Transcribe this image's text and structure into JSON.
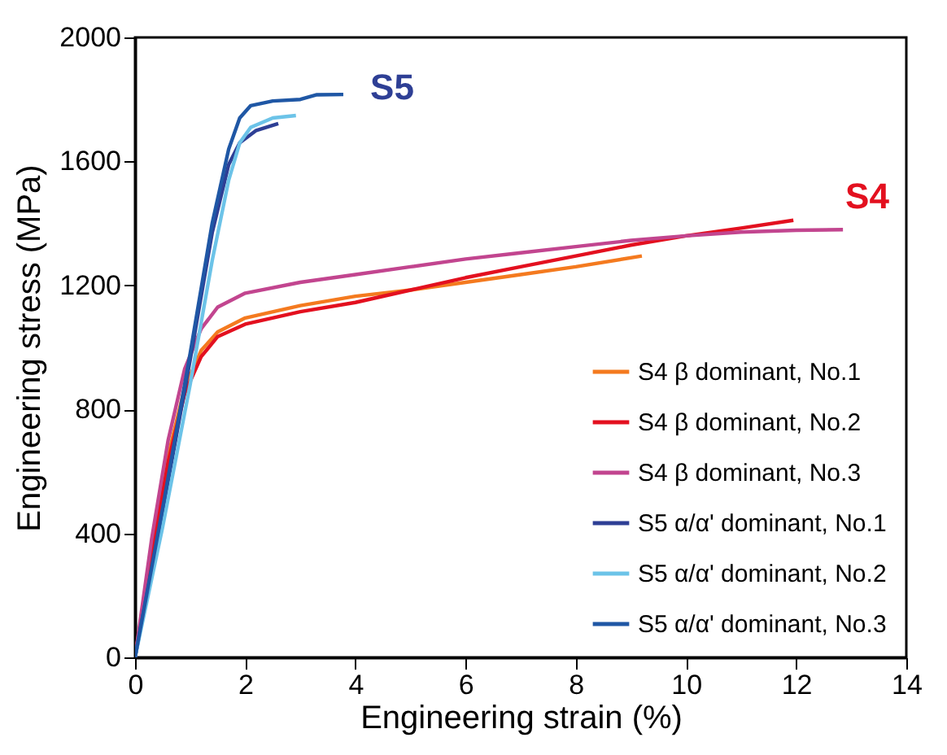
{
  "chart_data": {
    "type": "line",
    "xlabel": "Engineering strain (%)",
    "ylabel": "Engineering stress (MPa)",
    "xlim": [
      0,
      14
    ],
    "xticks": [
      0,
      2,
      4,
      6,
      8,
      10,
      12,
      14
    ],
    "ylim": [
      0,
      2000
    ],
    "yticks": [
      0,
      400,
      800,
      1200,
      1600,
      2000
    ],
    "grid": false,
    "legend": "bottom right",
    "marker": "none",
    "line_style": "solid",
    "annotations": [
      "S5",
      "S4"
    ],
    "series": [
      {
        "name": "S4  β dominant, No.1",
        "color": "#f47a1f",
        "x": [
          0,
          0.3,
          0.6,
          0.9,
          1.2,
          1.5,
          2,
          3,
          4,
          5,
          6,
          7,
          8,
          9.2
        ],
        "values": [
          0,
          350,
          650,
          870,
          990,
          1050,
          1095,
          1135,
          1165,
          1185,
          1210,
          1235,
          1260,
          1295
        ]
      },
      {
        "name": "S4  β dominant, No.2",
        "color": "#e3101f",
        "x": [
          0,
          0.3,
          0.6,
          0.9,
          1.2,
          1.5,
          2,
          3,
          4,
          5,
          6,
          7,
          8,
          9,
          10,
          11,
          11.95
        ],
        "values": [
          0,
          330,
          630,
          850,
          970,
          1035,
          1075,
          1115,
          1145,
          1185,
          1225,
          1260,
          1295,
          1330,
          1360,
          1385,
          1410
        ]
      },
      {
        "name": "S4  β dominant, No.3",
        "color": "#c2458f",
        "x": [
          0,
          0.3,
          0.6,
          0.9,
          1.2,
          1.5,
          2,
          3,
          4,
          5,
          6,
          7,
          8,
          9,
          10,
          11,
          12,
          12.85
        ],
        "values": [
          0,
          380,
          700,
          930,
          1060,
          1130,
          1175,
          1210,
          1235,
          1260,
          1285,
          1305,
          1325,
          1345,
          1360,
          1372,
          1378,
          1380
        ]
      },
      {
        "name": "S5 α/α' dominant, No.1",
        "color": "#2e3f95",
        "x": [
          0,
          0.5,
          1,
          1.4,
          1.7,
          1.9,
          2.2,
          2.6
        ],
        "values": [
          0,
          470,
          960,
          1370,
          1590,
          1660,
          1700,
          1722
        ]
      },
      {
        "name": "S5 α/α' dominant, No.2",
        "color": "#6cc3e8",
        "x": [
          0,
          0.5,
          1,
          1.4,
          1.7,
          1.9,
          2.1,
          2.5,
          2.92
        ],
        "values": [
          0,
          420,
          880,
          1280,
          1540,
          1660,
          1710,
          1740,
          1748
        ]
      },
      {
        "name": "S5 α/α' dominant, No.3",
        "color": "#1f57a5",
        "x": [
          0,
          0.5,
          1,
          1.4,
          1.7,
          1.9,
          2.1,
          2.5,
          3,
          3.3,
          3.78
        ],
        "values": [
          0,
          480,
          980,
          1400,
          1640,
          1740,
          1780,
          1795,
          1800,
          1815,
          1816
        ]
      }
    ]
  }
}
